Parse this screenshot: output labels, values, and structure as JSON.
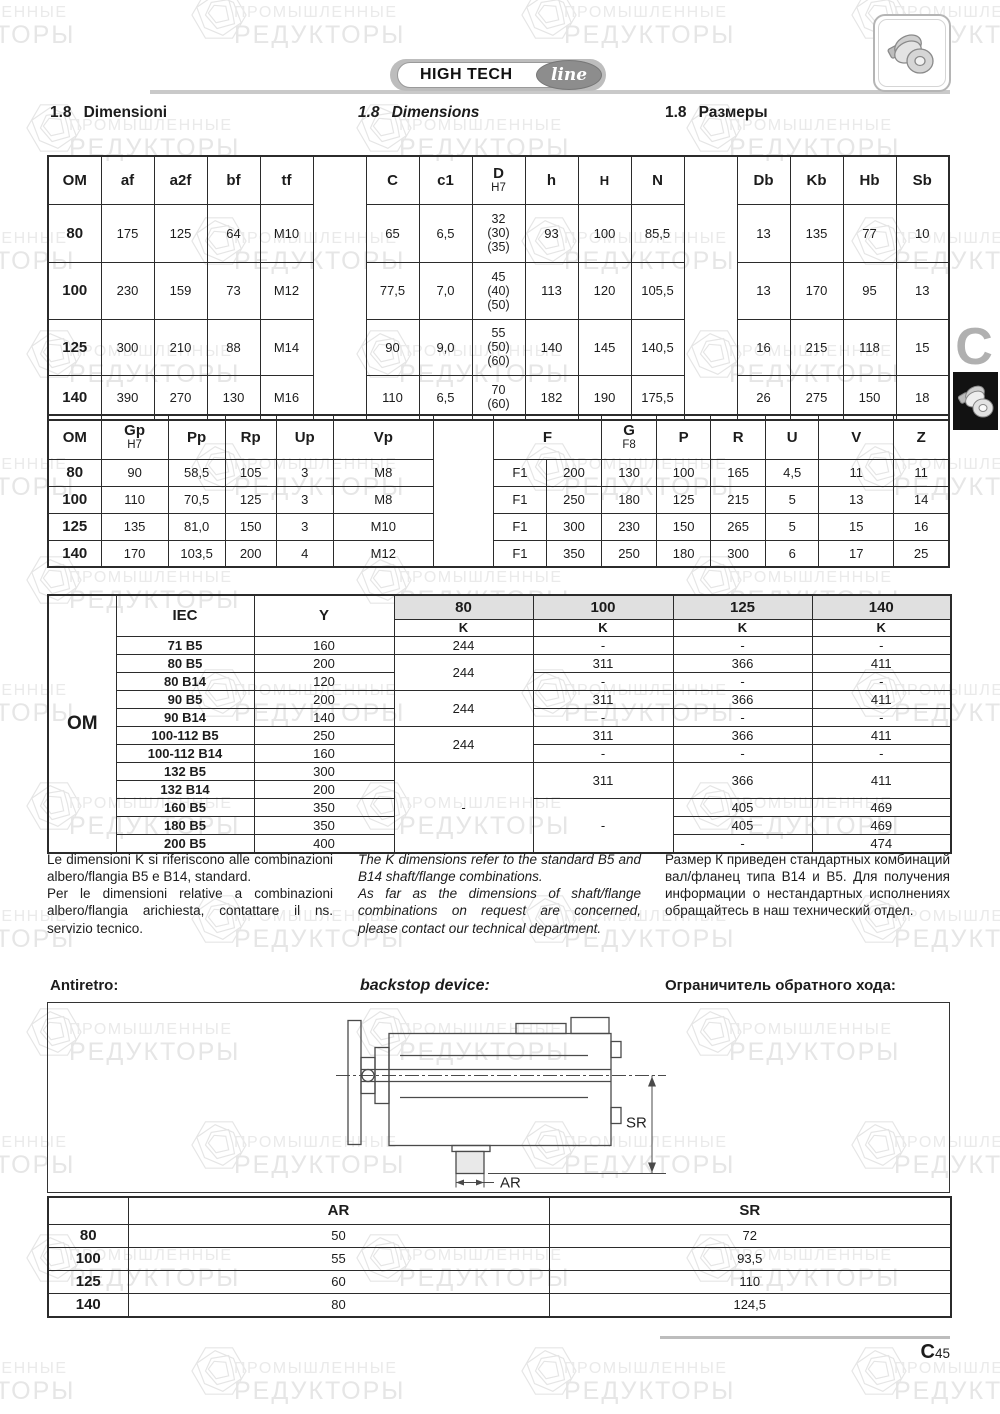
{
  "header": {
    "logo_text": "HIGH TECH",
    "logo_line": "line"
  },
  "titles": {
    "num": "1.8",
    "it": "Dimensioni",
    "en": "Dimensions",
    "ru": "Размеры"
  },
  "watermark": {
    "line1": "ПРОМЫШЛЕННЫЕ",
    "line2": "РЕДУКТОРЫ"
  },
  "side_tab": {
    "letter": "C"
  },
  "footer": {
    "chapter": "C",
    "page": "45"
  },
  "table1": {
    "rows": [
      [
        {
          "t": "OM",
          "cls": "hd"
        },
        {
          "t": "af",
          "cls": "hd"
        },
        {
          "t": "a2f",
          "cls": "hd"
        },
        {
          "t": "bf",
          "cls": "hd"
        },
        {
          "t": "tf",
          "cls": "hd"
        },
        {
          "t": "",
          "cls": "sp",
          "rs": 5
        },
        {
          "t": "C",
          "cls": "hd"
        },
        {
          "t": "c1",
          "cls": "hd"
        },
        {
          "t": "D",
          "sub": "H7",
          "cls": "hd"
        },
        {
          "t": "h",
          "cls": "hd"
        },
        {
          "t": "H",
          "cls": "hd hsm"
        },
        {
          "t": "N",
          "cls": "hd"
        },
        {
          "t": "",
          "cls": "sp",
          "rs": 5
        },
        {
          "t": "Db",
          "cls": "hd"
        },
        {
          "t": "Kb",
          "cls": "hd"
        },
        {
          "t": "Hb",
          "cls": "hd"
        },
        {
          "t": "Sb",
          "cls": "hd"
        }
      ],
      [
        {
          "t": "80",
          "cls": "lbl"
        },
        "175",
        "125",
        "64",
        "M10",
        "65",
        "6,5",
        {
          "t": "32\n(30)\n(35)",
          "cls": "ml"
        },
        "93",
        "100",
        "85,5",
        "13",
        "135",
        "77",
        "10"
      ],
      [
        {
          "t": "100",
          "cls": "lbl"
        },
        "230",
        "159",
        "73",
        "M12",
        "77,5",
        "7,0",
        {
          "t": "45\n(40)\n(50)",
          "cls": "ml"
        },
        "113",
        "120",
        "105,5",
        "13",
        "170",
        "95",
        "13"
      ],
      [
        {
          "t": "125",
          "cls": "lbl"
        },
        "300",
        "210",
        "88",
        "M14",
        "90",
        "9,0",
        {
          "t": "55\n(50)\n(60)",
          "cls": "ml"
        },
        "140",
        "145",
        "140,5",
        "16",
        "215",
        "118",
        "15"
      ],
      [
        {
          "t": "140",
          "cls": "lbl"
        },
        "390",
        "270",
        "130",
        "M16",
        "110",
        "6,5",
        {
          "t": "70\n(60)",
          "cls": "ml"
        },
        "182",
        "190",
        "175,5",
        "26",
        "275",
        "150",
        "18"
      ]
    ]
  },
  "table2": {
    "rows": [
      [
        {
          "t": "OM",
          "cls": "hd"
        },
        {
          "t": "Gp",
          "sub": "H7",
          "cls": "hd"
        },
        {
          "t": "Pp",
          "cls": "hd"
        },
        {
          "t": "Rp",
          "cls": "hd"
        },
        {
          "t": "Up",
          "cls": "hd"
        },
        {
          "t": "Vp",
          "cls": "hd"
        },
        {
          "t": "",
          "cls": "sp",
          "rs": 5
        },
        {
          "t": "F",
          "cs": 2,
          "cls": "hd"
        },
        {
          "t": "G",
          "sub": "F8",
          "cls": "hd"
        },
        {
          "t": "P",
          "cls": "hd"
        },
        {
          "t": "R",
          "cls": "hd"
        },
        {
          "t": "U",
          "cls": "hd"
        },
        {
          "t": "V",
          "cls": "hd"
        },
        {
          "t": "Z",
          "cls": "hd"
        }
      ],
      [
        {
          "t": "80",
          "cls": "lbl"
        },
        "90",
        "58,5",
        "105",
        "3",
        "M8",
        "F1",
        "200",
        "130",
        "100",
        "165",
        "4,5",
        "11",
        "11"
      ],
      [
        {
          "t": "100",
          "cls": "lbl"
        },
        "110",
        "70,5",
        "125",
        "3",
        "M8",
        "F1",
        "250",
        "180",
        "125",
        "215",
        "5",
        "13",
        "14"
      ],
      [
        {
          "t": "125",
          "cls": "lbl"
        },
        "135",
        "81,0",
        "150",
        "3",
        "M10",
        "F1",
        "300",
        "230",
        "150",
        "265",
        "5",
        "15",
        "16"
      ],
      [
        {
          "t": "140",
          "cls": "lbl"
        },
        "170",
        "103,5",
        "200",
        "4",
        "M12",
        "F1",
        "350",
        "250",
        "180",
        "300",
        "6",
        "17",
        "25"
      ]
    ]
  },
  "table3": {
    "rows": [
      [
        {
          "t": "OM",
          "rs": 14,
          "cls": "lbl big"
        },
        {
          "t": "IEC",
          "rs": 2,
          "cls": "hd"
        },
        {
          "t": "Y",
          "rs": 2,
          "cls": "hd"
        },
        {
          "t": "80",
          "cls": "hd gray"
        },
        {
          "t": "100",
          "cls": "hd gray"
        },
        {
          "t": "125",
          "cls": "hd gray"
        },
        {
          "t": "140",
          "cls": "hd gray"
        }
      ],
      [
        {
          "t": "K",
          "cls": "ksm"
        },
        {
          "t": "K",
          "cls": "ksm"
        },
        {
          "t": "K",
          "cls": "ksm"
        },
        {
          "t": "K",
          "cls": "ksm"
        }
      ],
      [
        {
          "t": "71 B5",
          "cls": "iec"
        },
        "160",
        "244",
        "-",
        "-",
        "-"
      ],
      [
        {
          "t": "80 B5",
          "cls": "iec"
        },
        "200",
        {
          "t": "244",
          "rs": 2
        },
        "311",
        "366",
        "411"
      ],
      [
        {
          "t": "80 B14",
          "cls": "iec"
        },
        "120",
        "-",
        "-",
        "-"
      ],
      [
        {
          "t": "90 B5",
          "cls": "iec"
        },
        "200",
        {
          "t": "244",
          "rs": 2
        },
        "311",
        "366",
        "411"
      ],
      [
        {
          "t": "90 B14",
          "cls": "iec"
        },
        "140",
        "-",
        "-",
        "-"
      ],
      [
        {
          "t": "100-112 B5",
          "cls": "iec"
        },
        "250",
        {
          "t": "244",
          "rs": 2
        },
        "311",
        "366",
        "411"
      ],
      [
        {
          "t": "100-112 B14",
          "cls": "iec"
        },
        "160",
        "-",
        "-",
        "-"
      ],
      [
        {
          "t": "132 B5",
          "cls": "iec"
        },
        "300",
        {
          "t": "-",
          "rs": 5
        },
        {
          "t": "311",
          "rs": 2
        },
        {
          "t": "366",
          "rs": 2
        },
        {
          "t": "411",
          "rs": 2
        }
      ],
      [
        {
          "t": "132 B14",
          "cls": "iec"
        },
        "200"
      ],
      [
        {
          "t": "160 B5",
          "cls": "iec"
        },
        "350",
        {
          "t": "-",
          "rs": 3
        },
        "405",
        "469"
      ],
      [
        {
          "t": "180 B5",
          "cls": "iec"
        },
        "350",
        "405",
        "469"
      ],
      [
        {
          "t": "200 B5",
          "cls": "iec"
        },
        "400",
        "-",
        "474"
      ]
    ]
  },
  "table4": {
    "rows": [
      [
        {
          "t": "",
          "cls": "hd"
        },
        {
          "t": "AR",
          "cls": "hd"
        },
        {
          "t": "SR",
          "cls": "hd"
        }
      ],
      [
        {
          "t": "80",
          "cls": "lbl"
        },
        "50",
        "72"
      ],
      [
        {
          "t": "100",
          "cls": "lbl"
        },
        "55",
        "93,5"
      ],
      [
        {
          "t": "125",
          "cls": "lbl"
        },
        "60",
        "110"
      ],
      [
        {
          "t": "140",
          "cls": "lbl"
        },
        "80",
        "124,5"
      ]
    ]
  },
  "notes": {
    "it": [
      "Le dimensioni K si riferiscono alle combinazioni albero/flangia B5 e B14, standard.",
      "Per le dimensioni relative a combinazioni albero/flangia arichiesta, contattare il ns. servizio tecnico."
    ],
    "en": [
      "The K dimensions refer to the standard B5 and B14 shaft/flange combinations.",
      "As far as the dimensions of shaft/flange combinations on request are concerned, please contact our technical department."
    ],
    "ru": [
      "Размер К приведен стандартных комбинаций вал/фланец типа В14 и В5. Для получения информации о нестандартных исполнениях обращайтесь в наш технический отдел."
    ]
  },
  "backstop": {
    "label_it": "Antiretro:",
    "label_en": "backstop device:",
    "label_ru": "Ограничитель обратного хода:",
    "dim_ar": "AR",
    "dim_sr": "SR"
  },
  "colors": {
    "accent_gray": "#e0e0e0",
    "tab_black": "#121212",
    "rule_gray": "#c9c9c9"
  }
}
